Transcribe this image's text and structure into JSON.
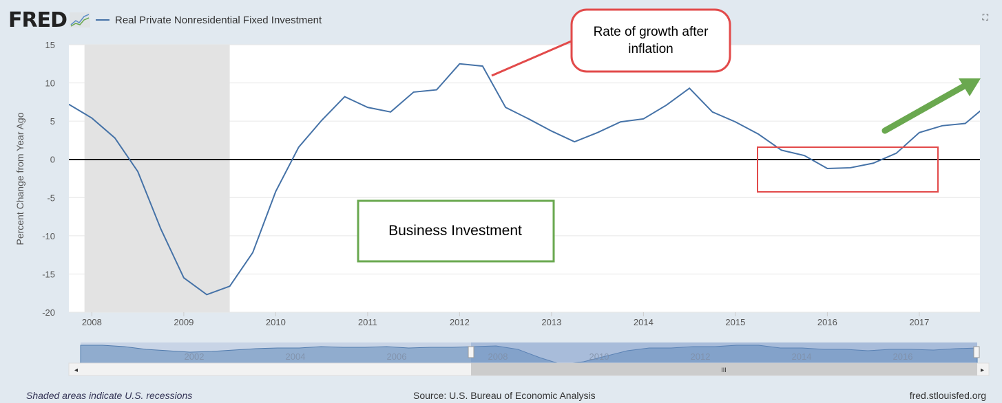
{
  "header": {
    "logo": "FRED",
    "series_title": "Real Private Nonresidential Fixed Investment",
    "expand_icon": "expand-icon"
  },
  "footer": {
    "note": "Shaded areas indicate U.S. recessions",
    "source": "Source: U.S. Bureau of Economic Analysis",
    "site": "fred.stlouisfed.org"
  },
  "annotations": {
    "callout": [
      "Rate of growth after",
      "inflation"
    ],
    "box_label": "Business Investment"
  },
  "navigator": {
    "labels": [
      "2002",
      "2004",
      "2006",
      "2008",
      "2010",
      "2012",
      "2014",
      "2016"
    ],
    "range": [
      2007.75,
      2017.75
    ]
  },
  "chart_data": {
    "type": "line",
    "title": "Real Private Nonresidential Fixed Investment",
    "ylabel": "Percent Change from Year Ago",
    "xlabel": "",
    "ylim": [
      -20,
      15
    ],
    "xlim": [
      2007.75,
      2017.66
    ],
    "yticks": [
      15,
      10,
      5,
      0,
      -5,
      -10,
      -15,
      -20
    ],
    "xticks": [
      "2008",
      "2009",
      "2010",
      "2011",
      "2012",
      "2013",
      "2014",
      "2015",
      "2016",
      "2017"
    ],
    "recessions": [
      [
        2007.92,
        2009.5
      ]
    ],
    "series": [
      {
        "name": "Real Private Nonresidential Fixed Investment",
        "color": "#4572a7",
        "x": [
          2007.75,
          2008,
          2008.25,
          2008.5,
          2008.75,
          2009,
          2009.25,
          2009.5,
          2009.75,
          2010,
          2010.25,
          2010.5,
          2010.75,
          2011,
          2011.25,
          2011.5,
          2011.75,
          2012,
          2012.25,
          2012.5,
          2012.75,
          2013,
          2013.25,
          2013.5,
          2013.75,
          2014,
          2014.25,
          2014.5,
          2014.75,
          2015,
          2015.25,
          2015.5,
          2015.75,
          2016,
          2016.25,
          2016.5,
          2016.75,
          2017,
          2017.25,
          2017.5,
          2017.75
        ],
        "values": [
          7.2,
          5.4,
          2.8,
          -1.6,
          -9.1,
          -15.5,
          -17.7,
          -16.6,
          -12.2,
          -4.2,
          1.6,
          5.1,
          8.2,
          6.8,
          6.2,
          8.8,
          9.1,
          12.5,
          12.2,
          6.8,
          5.3,
          3.7,
          2.3,
          3.5,
          4.9,
          5.3,
          7.1,
          9.3,
          6.2,
          4.9,
          3.3,
          1.2,
          0.5,
          -1.2,
          -1.1,
          -0.5,
          0.8,
          3.5,
          4.4,
          4.7,
          7.2
        ]
      }
    ]
  }
}
